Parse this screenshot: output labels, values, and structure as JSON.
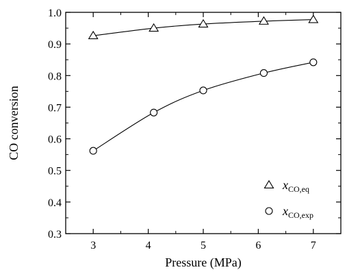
{
  "chart_data": {
    "type": "scatter",
    "xlabel": "Pressure (MPa)",
    "ylabel": "CO conversion",
    "xlim": [
      2.5,
      7.5
    ],
    "ylim": [
      0.3,
      1.0
    ],
    "xticks": [
      3,
      4,
      5,
      6,
      7
    ],
    "yticks": [
      0.3,
      0.4,
      0.5,
      0.6,
      0.7,
      0.8,
      0.9,
      1.0
    ],
    "xtick_labels": [
      "3",
      "4",
      "5",
      "6",
      "7"
    ],
    "ytick_labels": [
      "0.3",
      "0.4",
      "0.5",
      "0.6",
      "0.7",
      "0.8",
      "0.9",
      "1.0"
    ],
    "grid": false,
    "legend_position": "bottom-right",
    "series": [
      {
        "name": "x",
        "name_sub": "CO,eq",
        "marker": "triangle",
        "fit_line": true,
        "x": [
          3.0,
          4.1,
          5.0,
          6.1,
          7.0
        ],
        "y": [
          0.926,
          0.95,
          0.963,
          0.972,
          0.977
        ]
      },
      {
        "name": "x",
        "name_sub": "CO,exp",
        "marker": "circle",
        "fit_line": true,
        "x": [
          3.0,
          4.1,
          5.0,
          6.1,
          7.0
        ],
        "y": [
          0.562,
          0.683,
          0.753,
          0.808,
          0.842
        ]
      }
    ]
  }
}
